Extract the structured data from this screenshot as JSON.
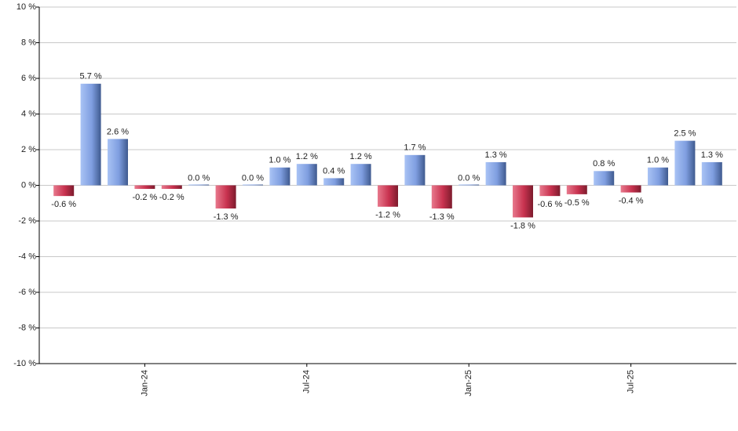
{
  "chart_data": {
    "type": "bar",
    "categories": [
      null,
      null,
      null,
      "Jan-24",
      null,
      null,
      null,
      null,
      null,
      "Jul-24",
      null,
      null,
      null,
      null,
      null,
      "Jan-25",
      null,
      null,
      null,
      null,
      null,
      "Jul-25",
      null,
      null,
      null
    ],
    "values": [
      -0.6,
      5.7,
      2.6,
      -0.2,
      -0.2,
      0.0,
      -1.3,
      0.0,
      1.0,
      1.2,
      0.4,
      1.2,
      -1.2,
      1.7,
      -1.3,
      0.0,
      1.3,
      -1.8,
      -0.6,
      -0.5,
      0.8,
      -0.4,
      1.0,
      2.5,
      1.3
    ],
    "value_labels": [
      "-0.6 %",
      "5.7 %",
      "2.6 %",
      "-0.2 %",
      "-0.2 %",
      "0.0 %",
      "-1.3 %",
      "0.0 %",
      "1.0 %",
      "1.2 %",
      "0.4 %",
      "1.2 %",
      "-1.2 %",
      "1.7 %",
      "-1.3 %",
      "0.0 %",
      "1.3 %",
      "-1.8 %",
      "-0.6 %",
      "-0.5 %",
      "0.8 %",
      "-0.4 %",
      "1.0 %",
      "2.5 %",
      "1.3 %"
    ],
    "positive_color": "#7f9ee0",
    "negative_color": "#c8324f",
    "ylim": [
      -10,
      10
    ],
    "yticks": [
      {
        "value": -10,
        "label": "-10 %"
      },
      {
        "value": -8,
        "label": "-8 %"
      },
      {
        "value": -6,
        "label": "-6 %"
      },
      {
        "value": -4,
        "label": "-4 %"
      },
      {
        "value": -2,
        "label": "-2 %"
      },
      {
        "value": 0,
        "label": "0 %"
      },
      {
        "value": 2,
        "label": "2 %"
      },
      {
        "value": 4,
        "label": "4 %"
      },
      {
        "value": 6,
        "label": "6 %"
      },
      {
        "value": 8,
        "label": "8 %"
      },
      {
        "value": 10,
        "label": "10 %"
      }
    ],
    "grid": true
  }
}
